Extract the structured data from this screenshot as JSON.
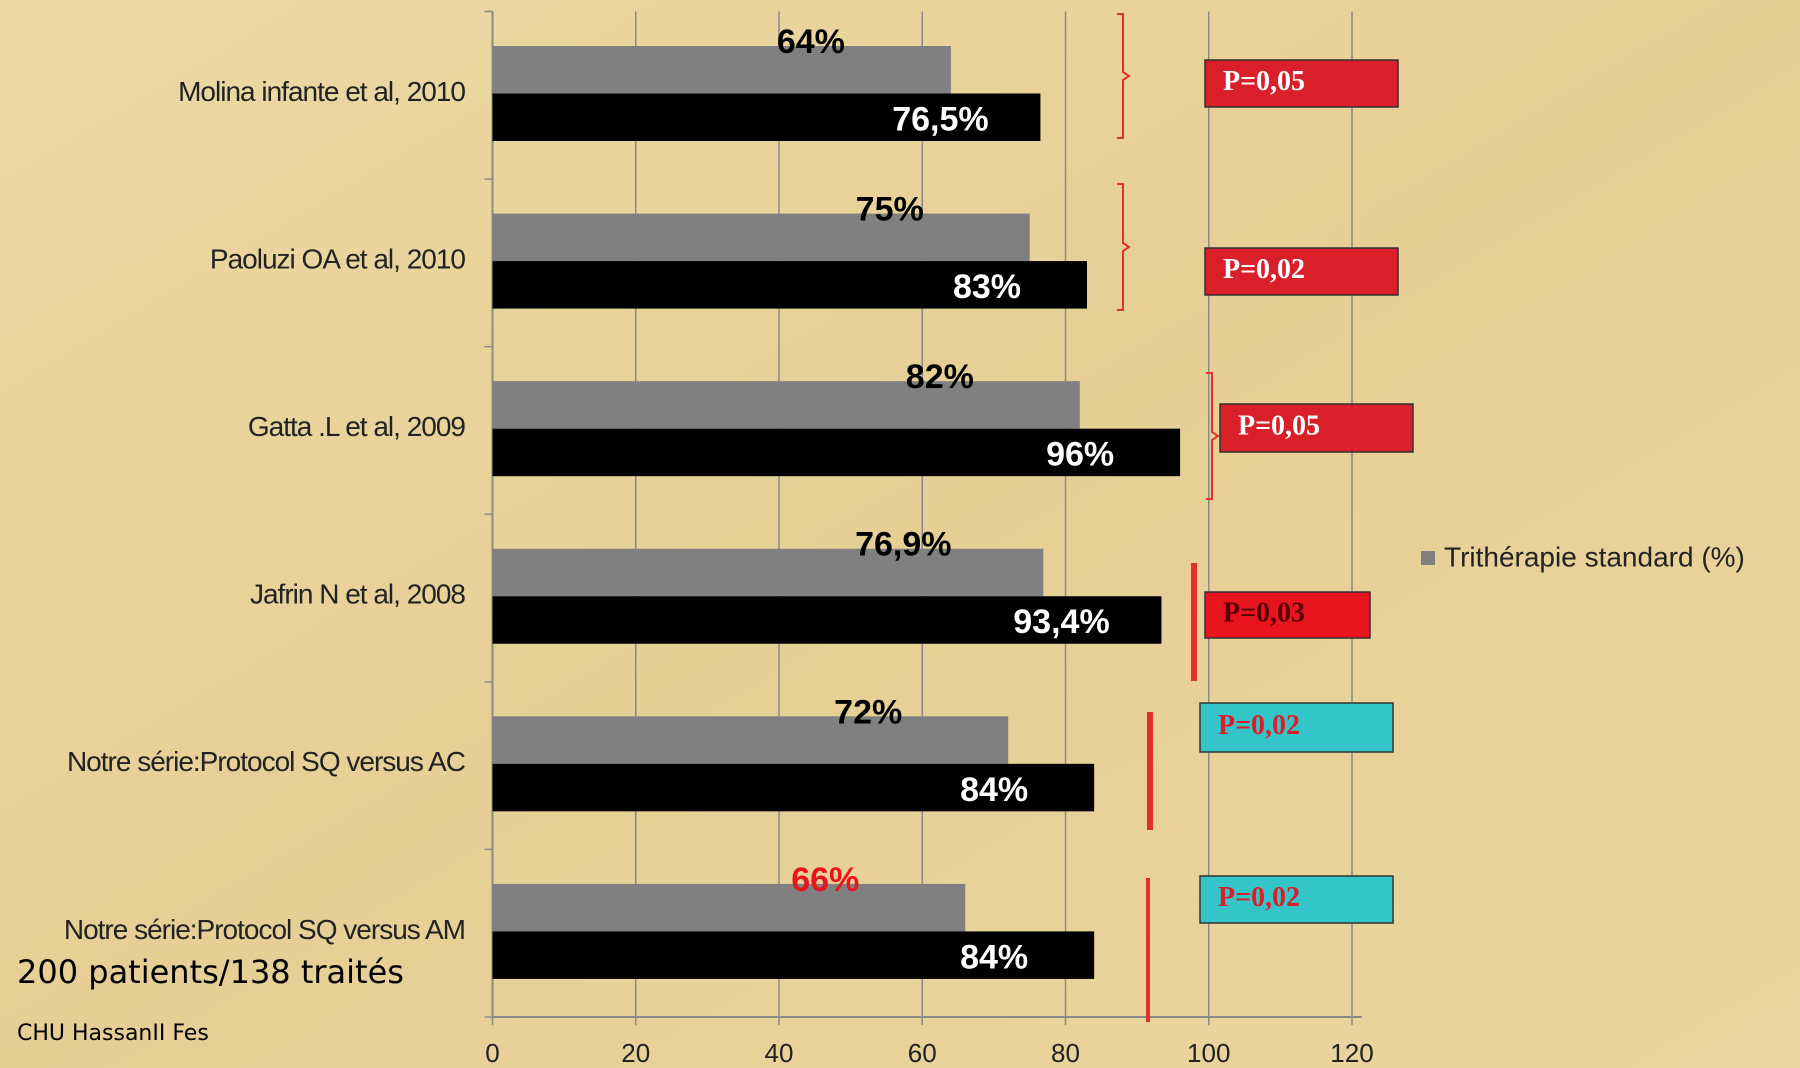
{
  "chart_data": {
    "type": "hbar",
    "categories": [
      "Molina infante et al, 2010",
      "Paoluzi OA et al, 2010",
      "Gatta .L et al, 2009",
      "Jafrin N et al, 2008",
      "Notre série:Protocol SQ versus AC",
      "Notre série:Protocol SQ versus AM"
    ],
    "series": [
      {
        "name": "Trithérapie standard (%)",
        "color": "#808080",
        "values": [
          64,
          75,
          82,
          76.9,
          72,
          66
        ],
        "value_labels": [
          "64%",
          "75%",
          "82%",
          "76,9%",
          "72%",
          "66%"
        ],
        "value_label_colors": [
          "#000000",
          "#000000",
          "#000000",
          "#000000",
          "#000000",
          "#e8141e"
        ]
      },
      {
        "color": "#000000",
        "values": [
          76.5,
          83,
          96,
          93.4,
          84,
          84
        ],
        "value_labels": [
          "76,5%",
          "83%",
          "96%",
          "93,4%",
          "84%",
          "84%"
        ],
        "value_label_colors": [
          "#ffffff",
          "#ffffff",
          "#ffffff",
          "#ffffff",
          "#ffffff",
          "#ffffff"
        ]
      }
    ],
    "xlim": [
      0,
      120
    ],
    "xticks": [
      0,
      20,
      40,
      60,
      80,
      100,
      120
    ],
    "grid": true,
    "legend": "right",
    "annotations": [
      {
        "text": "P=0,05",
        "color": "#d9202a",
        "text_color": "#ffffff"
      },
      {
        "text": "P=0,02",
        "color": "#d9202a",
        "text_color": "#ffffff"
      },
      {
        "text": "P=0,05",
        "color": "#d9202a",
        "text_color": "#ffffff"
      },
      {
        "text": "P=0,03",
        "color": "#e8141e",
        "text_color": "#5a0000"
      },
      {
        "text": "P=0,02",
        "color": "#33c5c8",
        "text_color": "#d9202a"
      },
      {
        "text": "P=0,02",
        "color": "#33c5c8",
        "text_color": "#d9202a"
      }
    ],
    "notes": [
      "200 patients/138 traités",
      "CHU HassanII Fes"
    ]
  }
}
